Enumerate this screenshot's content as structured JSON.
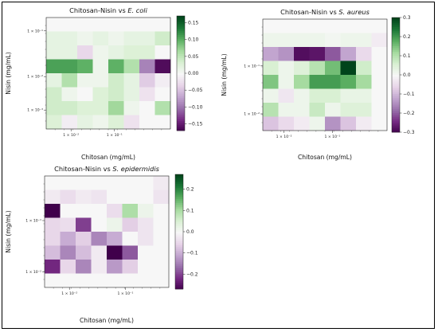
{
  "chart_data": [
    {
      "type": "heatmap",
      "title_prefix": "Chitosan-Nisin vs ",
      "title_organism": "E. coli",
      "xlabel": "Chitosan (mg/mL)",
      "ylabel": "Nisin (mg/mL)",
      "x_ticks": [
        "1 × 10⁻²",
        "1 × 10⁻¹"
      ],
      "y_ticks": [
        "1 × 10⁻³",
        "1 × 10⁻²",
        "1 × 10⁻¹"
      ],
      "colorbar_range": [
        -0.17,
        0.17
      ],
      "colorbar_ticks": [
        "0.15",
        "0.10",
        "0.05",
        "0.00",
        "−0.05",
        "−0.10",
        "−0.15"
      ],
      "colorbar_tick_values": [
        0.15,
        0.1,
        0.05,
        0.0,
        -0.05,
        -0.1,
        -0.15
      ],
      "grid": false,
      "colormap": "PRGn",
      "rows": 8,
      "cols": 8,
      "values": [
        [
          0.0,
          0.0,
          0.0,
          0.0,
          0.0,
          0.0,
          0.0,
          0.0
        ],
        [
          0.02,
          0.02,
          0.01,
          0.02,
          0.01,
          0.02,
          0.02,
          0.04
        ],
        [
          0.02,
          0.02,
          -0.03,
          0.01,
          0.02,
          0.03,
          0.03,
          0.0
        ],
        [
          0.11,
          0.11,
          0.1,
          0.01,
          0.1,
          0.06,
          -0.09,
          -0.16
        ],
        [
          0.02,
          0.06,
          0.01,
          0.01,
          0.04,
          0.02,
          -0.04,
          -0.01
        ],
        [
          0.04,
          0.01,
          0.0,
          0.03,
          0.04,
          0.02,
          -0.02,
          0.0
        ],
        [
          0.04,
          0.04,
          0.03,
          0.03,
          0.07,
          0.01,
          0.0,
          0.06
        ],
        [
          0.03,
          -0.01,
          0.02,
          0.01,
          0.03,
          -0.02,
          0.0,
          0.0
        ]
      ]
    },
    {
      "type": "heatmap",
      "title_prefix": "Chitosan-Nisin vs ",
      "title_organism": "S. aureus",
      "xlabel": "Chitosan (mg/mL)",
      "ylabel": "Nisin (mg/mL)",
      "x_ticks": [
        "1 × 10⁻²",
        "1 × 10⁻¹"
      ],
      "y_ticks": [
        "1 × 10⁻²",
        "1 × 10⁻¹"
      ],
      "colorbar_range": [
        -0.3,
        0.3
      ],
      "colorbar_ticks": [
        "0.3",
        "0.2",
        "0.1",
        "0.0",
        "−0.1",
        "−0.2",
        "−0.3"
      ],
      "colorbar_tick_values": [
        0.3,
        0.2,
        0.1,
        0.0,
        -0.1,
        -0.2,
        -0.3
      ],
      "grid": false,
      "colormap": "PRGn",
      "rows": 8,
      "cols": 8,
      "values": [
        [
          0.0,
          0.0,
          0.0,
          0.0,
          0.0,
          0.0,
          0.0,
          0.0
        ],
        [
          0.02,
          0.02,
          0.02,
          0.02,
          0.01,
          0.02,
          0.02,
          -0.02
        ],
        [
          -0.12,
          -0.14,
          -0.28,
          -0.27,
          -0.2,
          -0.12,
          -0.05,
          0.0
        ],
        [
          0.06,
          0.02,
          0.05,
          0.1,
          0.16,
          0.3,
          0.07,
          0.0
        ],
        [
          0.15,
          0.02,
          0.12,
          0.2,
          0.2,
          0.18,
          0.12,
          0.0
        ],
        [
          0.02,
          -0.03,
          0.02,
          0.06,
          0.06,
          0.03,
          0.03,
          0.0
        ],
        [
          0.1,
          0.02,
          0.02,
          0.08,
          0.02,
          0.05,
          0.05,
          0.0
        ],
        [
          -0.08,
          -0.05,
          -0.02,
          0.02,
          -0.14,
          -0.08,
          -0.02,
          0.0
        ]
      ]
    },
    {
      "type": "heatmap",
      "title_prefix": "Chitosan-Nisin vs ",
      "title_organism": "S. epidermidis",
      "xlabel": "Chitosan (mg/mL)",
      "ylabel": "Nisin (mg/mL)",
      "x_ticks": [
        "1 × 10⁻²",
        "1 × 10⁻¹"
      ],
      "y_ticks": [
        "1 × 10⁻²",
        "1 × 10⁻¹"
      ],
      "colorbar_range": [
        -0.27,
        0.27
      ],
      "colorbar_ticks": [
        "0.2",
        "0.1",
        "0.0",
        "−0.1",
        "−0.2"
      ],
      "colorbar_tick_values": [
        0.2,
        0.1,
        0.0,
        -0.1,
        -0.2
      ],
      "grid": false,
      "colormap": "PRGn",
      "rows": 8,
      "cols": 8,
      "values": [
        [
          0.0,
          0.0,
          0.0,
          0.0,
          0.0,
          0.0,
          0.0,
          -0.02
        ],
        [
          -0.02,
          -0.04,
          -0.02,
          -0.03,
          0.0,
          0.0,
          0.0,
          -0.03
        ],
        [
          -0.27,
          0.0,
          0.0,
          0.0,
          -0.04,
          0.1,
          0.02,
          0.0
        ],
        [
          -0.05,
          -0.04,
          -0.2,
          0.0,
          0.02,
          -0.06,
          -0.03,
          0.0
        ],
        [
          -0.05,
          -0.1,
          -0.06,
          -0.14,
          -0.1,
          0.0,
          -0.03,
          0.0
        ],
        [
          -0.08,
          -0.14,
          -0.08,
          -0.02,
          -0.27,
          -0.18,
          0.0,
          0.0
        ],
        [
          -0.22,
          -0.05,
          -0.14,
          -0.02,
          -0.12,
          -0.06,
          0.0,
          0.0
        ],
        [
          0.0,
          0.0,
          0.0,
          0.0,
          0.0,
          0.0,
          0.0,
          0.0
        ]
      ]
    }
  ]
}
